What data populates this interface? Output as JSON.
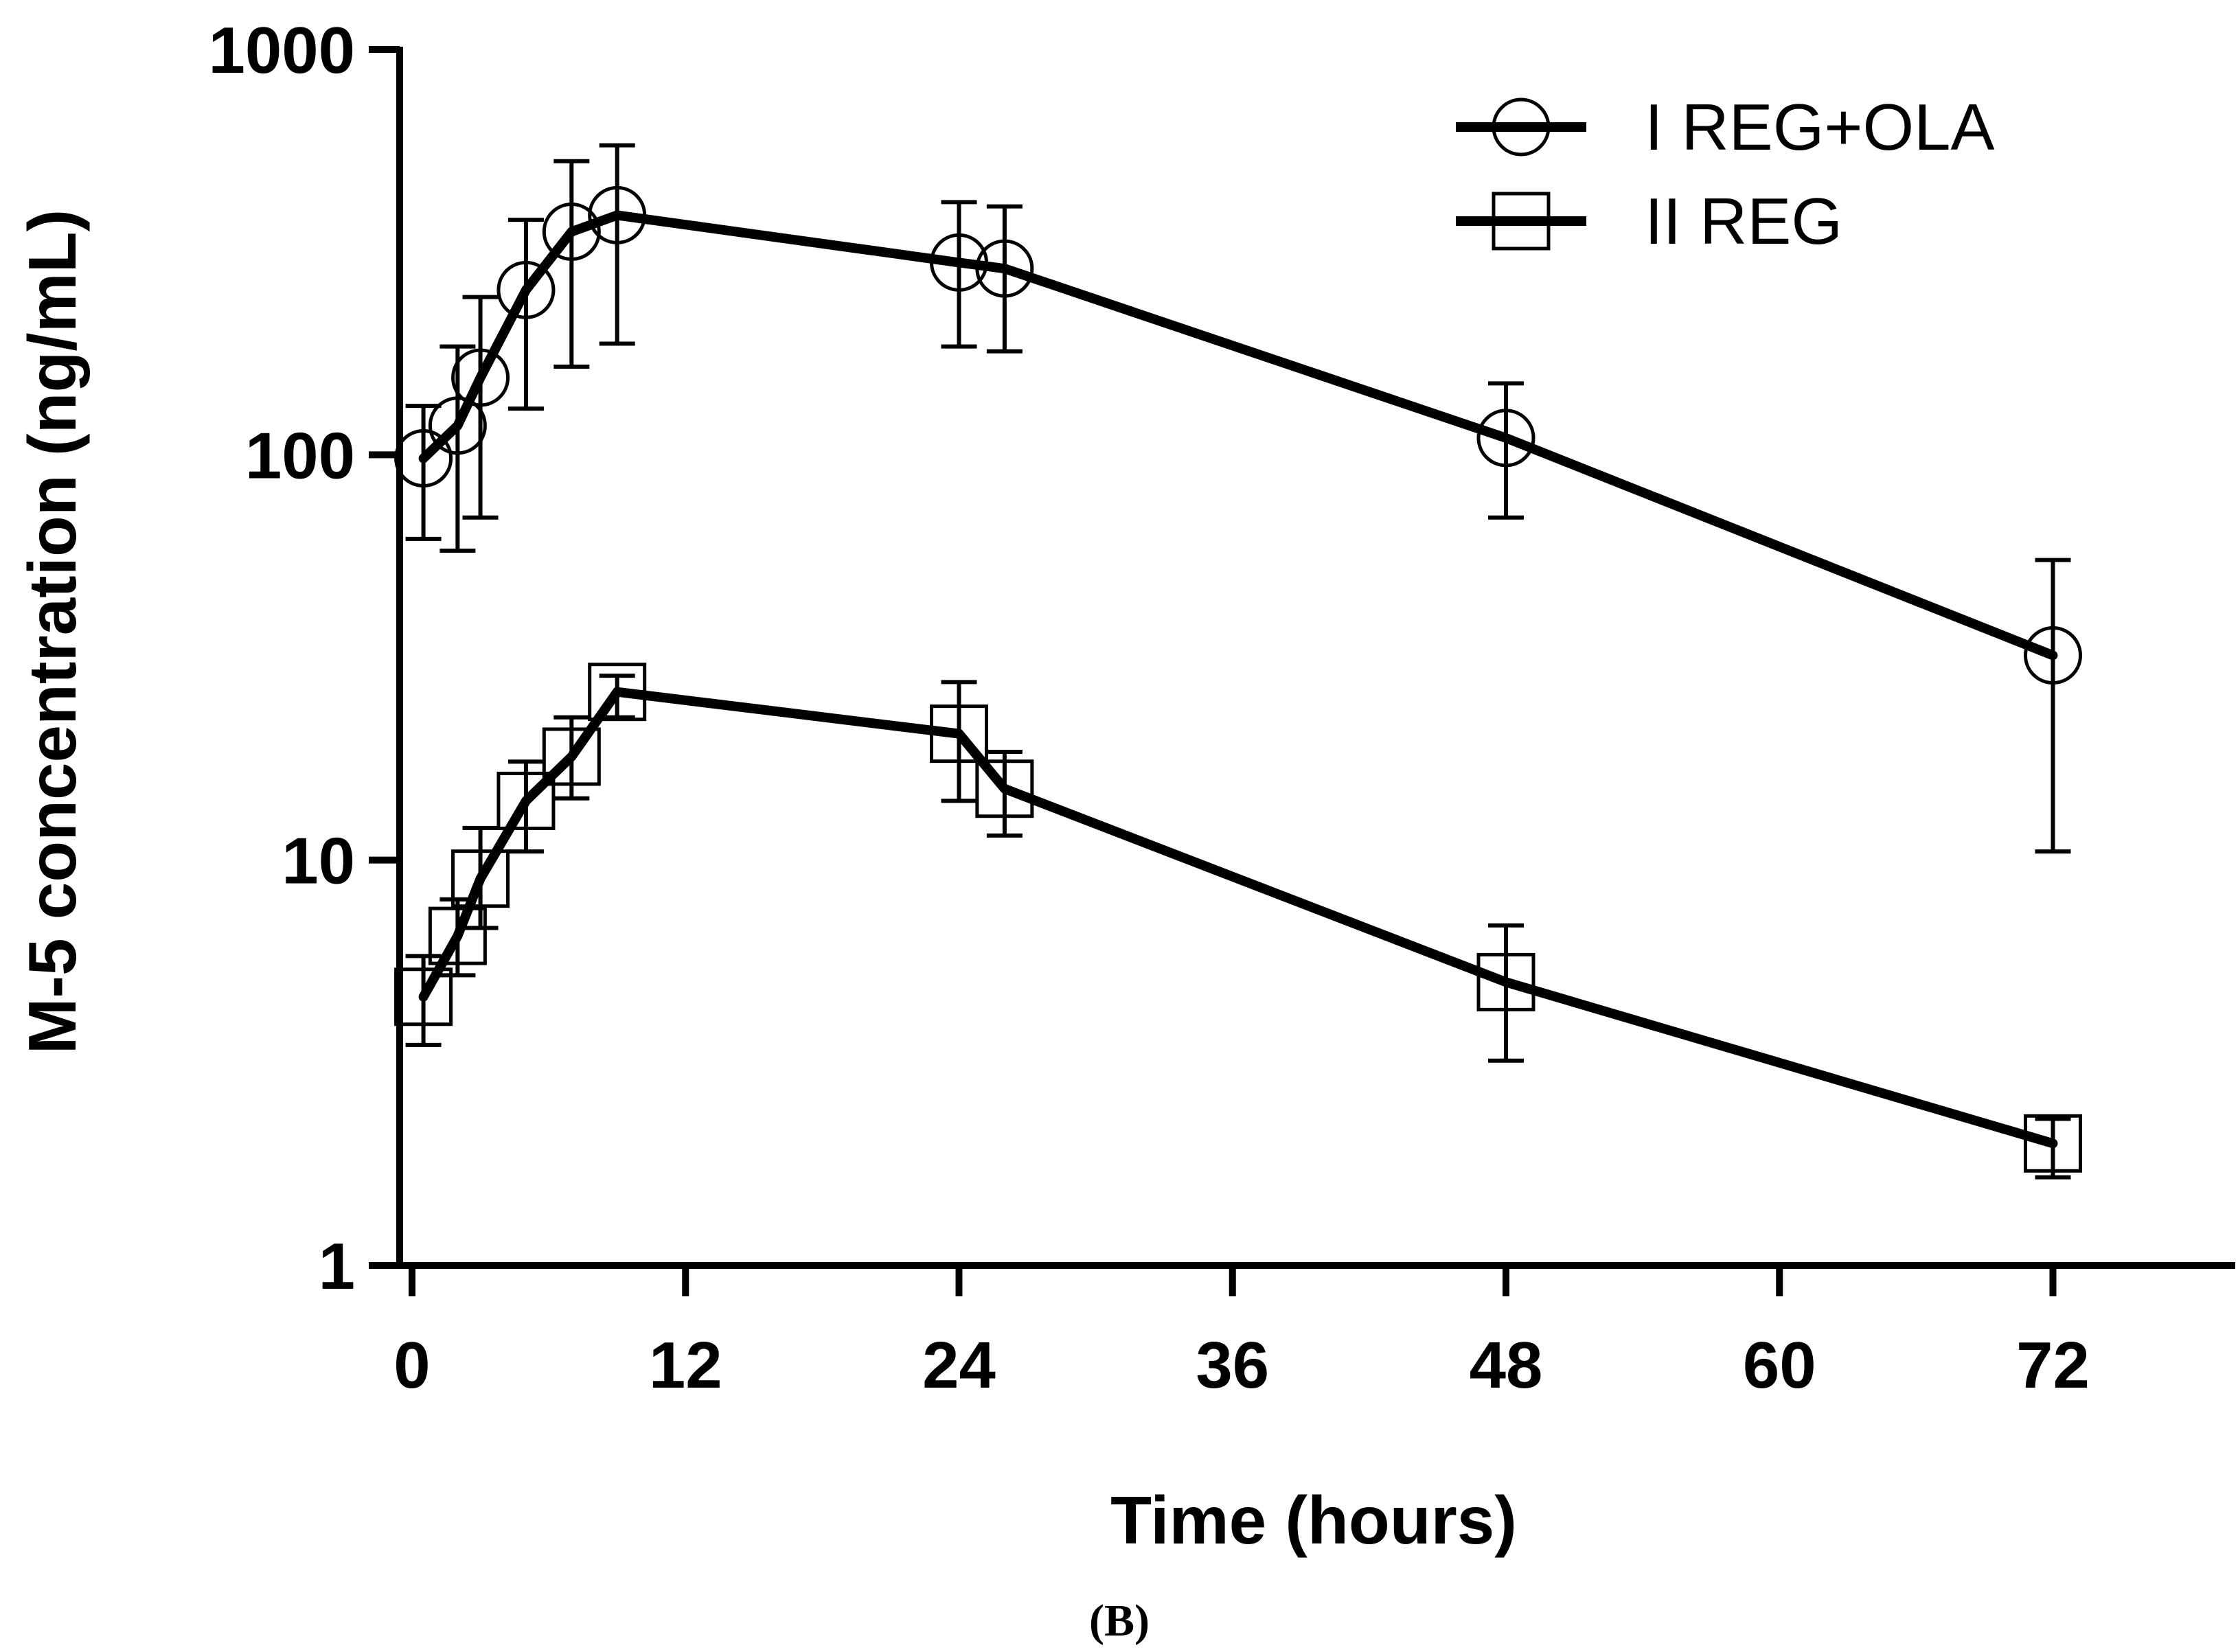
{
  "chart_data": {
    "type": "line",
    "xlabel": "Time (hours)",
    "ylabel": "M-5 concentration (ng/mL)",
    "xlim": [
      0,
      80
    ],
    "ylim": [
      1,
      1000
    ],
    "yscale": "log",
    "xticks": [
      0,
      12,
      24,
      36,
      48,
      60,
      72
    ],
    "yticks": [
      1,
      10,
      100,
      1000
    ],
    "panel_label": "(B)",
    "legend_position": "top-right",
    "series": [
      {
        "name": "I REG+OLA",
        "marker": "circle",
        "x": [
          0.5,
          2,
          3,
          5,
          7,
          9,
          24,
          26,
          48,
          72
        ],
        "y": [
          98,
          118,
          155,
          255,
          355,
          390,
          298,
          288,
          110,
          32
        ],
        "err_low": [
          62,
          58,
          70,
          130,
          165,
          188,
          185,
          180,
          70,
          10.5
        ],
        "err_high": [
          132,
          185,
          245,
          380,
          530,
          580,
          420,
          410,
          150,
          55
        ]
      },
      {
        "name": "II REG",
        "marker": "square",
        "x": [
          0.5,
          2,
          3,
          5,
          7,
          9,
          24,
          26,
          48,
          72
        ],
        "y": [
          4.6,
          6.5,
          9.0,
          14,
          18,
          26,
          20.5,
          15,
          5.0,
          2.0
        ],
        "err_low": [
          3.5,
          5.2,
          6.8,
          10.5,
          14.2,
          22.5,
          14,
          11.5,
          3.2,
          1.65
        ],
        "err_high": [
          5.8,
          8.0,
          12,
          17.5,
          22.5,
          28.5,
          27.5,
          18.5,
          6.9,
          2.3
        ]
      }
    ]
  }
}
